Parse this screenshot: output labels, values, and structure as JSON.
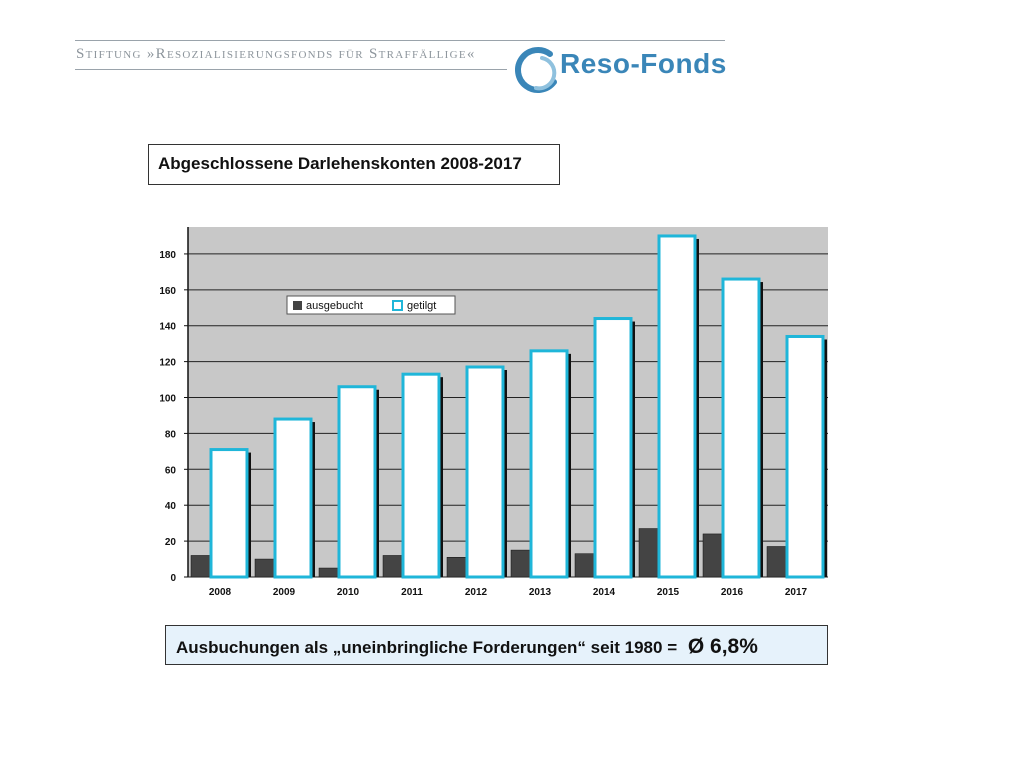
{
  "header": {
    "foundation_name": "Stiftung »Resozialisierungsfonds für Straffällige«",
    "logo_text": "Reso-Fonds"
  },
  "title_box": {
    "text": "Abgeschlossene Darlehenskonten 2008-2017"
  },
  "bottom_box": {
    "text": "Ausbuchungen als „uneinbringliche Forderungen“  seit  1980  = ",
    "average": "Ø 6,8%"
  },
  "colors": {
    "ausgebucht": "#444444",
    "getilgt": "#1fb6d9",
    "plot_bg": "#c8c8c8",
    "logo": "#3a86b8"
  },
  "chart_data": {
    "type": "bar",
    "categories": [
      "2008",
      "2009",
      "2010",
      "2011",
      "2012",
      "2013",
      "2014",
      "2015",
      "2016",
      "2017"
    ],
    "series": [
      {
        "name": "ausgebucht",
        "values": [
          12,
          10,
          5,
          12,
          11,
          15,
          13,
          27,
          24,
          17
        ]
      },
      {
        "name": "getilgt",
        "values": [
          71,
          88,
          106,
          113,
          117,
          126,
          144,
          190,
          166,
          134
        ]
      }
    ],
    "ylim": [
      0,
      195
    ],
    "yticks": [
      0,
      20,
      40,
      60,
      80,
      100,
      120,
      140,
      160,
      180
    ],
    "grid": true,
    "legend": "top-left"
  }
}
